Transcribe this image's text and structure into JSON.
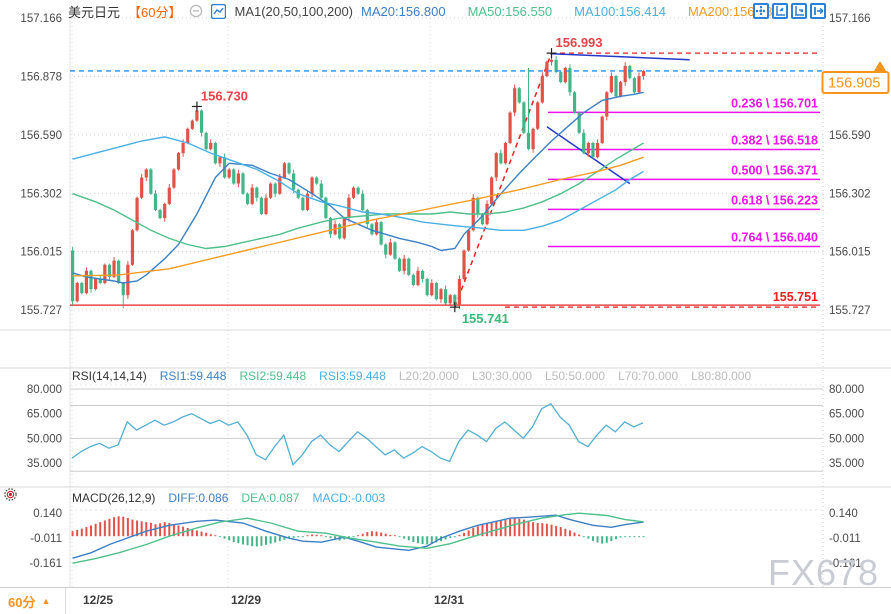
{
  "header": {
    "symbol": "美元日元",
    "timeframe": "【60分】",
    "indicator_set_label": "MA1(20,50,100,200)",
    "ma_values": [
      {
        "label": "MA20:156.800",
        "color": "#3d7fc4"
      },
      {
        "label": "MA50:156.550",
        "color": "#4fbf8b"
      },
      {
        "label": "MA100:156.414",
        "color": "#49b0e3"
      },
      {
        "label": "MA200:156.48",
        "color": "#f59a23"
      }
    ]
  },
  "toolbar_icons": [
    "crosshair-tool",
    "fit-vertical-scale",
    "fit-horizontal-scale",
    "pan-right"
  ],
  "chart_data": {
    "type": "candlestick",
    "symbol": "USD/JPY",
    "interval": "60min",
    "price_axis_ticks": [
      "157.166",
      "156.878",
      "156.590",
      "156.302",
      "156.015",
      "155.727"
    ],
    "time_axis_ticks": [
      "12/25",
      "12/29",
      "12/31"
    ],
    "current_price": "156.905",
    "up_color": "#e25249",
    "down_color": "#44b588",
    "candles": {
      "first_open": 156.02,
      "closes": [
        155.77,
        155.86,
        155.81,
        155.92,
        155.83,
        155.88,
        155.86,
        155.95,
        155.89,
        155.97,
        155.86,
        155.8,
        155.95,
        156.12,
        156.28,
        156.38,
        156.42,
        156.3,
        156.22,
        156.18,
        156.25,
        156.33,
        156.42,
        156.5,
        156.55,
        156.62,
        156.66,
        156.71,
        156.6,
        156.52,
        156.55,
        156.45,
        156.48,
        156.38,
        156.42,
        156.35,
        156.4,
        156.3,
        156.25,
        156.33,
        156.28,
        156.2,
        156.28,
        156.35,
        156.3,
        156.38,
        156.45,
        156.4,
        156.32,
        156.28,
        156.22,
        156.3,
        156.38,
        156.35,
        156.28,
        156.18,
        156.1,
        156.15,
        156.08,
        156.18,
        156.28,
        156.33,
        156.3,
        156.22,
        156.15,
        156.1,
        156.16,
        156.05,
        156.0,
        156.06,
        155.98,
        155.92,
        155.98,
        155.9,
        155.85,
        155.92,
        155.88,
        155.8,
        155.86,
        155.78,
        155.83,
        155.76,
        155.8,
        155.75,
        155.88,
        156.02,
        156.12,
        156.28,
        156.2,
        156.15,
        156.25,
        156.38,
        156.5,
        156.45,
        156.55,
        156.7,
        156.82,
        156.75,
        156.6,
        156.52,
        156.62,
        156.75,
        156.88,
        156.95,
        156.96,
        156.9,
        156.85,
        156.92,
        156.8,
        156.7,
        156.6,
        156.5,
        156.55,
        156.48,
        156.55,
        156.68,
        156.8,
        156.88,
        156.78,
        156.85,
        156.93,
        156.87,
        156.8,
        156.88,
        156.905
      ],
      "wick_overrides": {
        "11": {
          "low": 155.735
        },
        "27": {
          "high": 156.73
        },
        "83": {
          "low": 155.741
        },
        "99": {
          "high": 156.92
        },
        "104": {
          "high": 156.993
        }
      }
    },
    "ma_lines": {
      "ma20": {
        "color": "#3d7fc4",
        "points": [
          [
            0,
            155.91
          ],
          [
            3,
            155.89
          ],
          [
            6,
            155.88
          ],
          [
            9,
            155.87
          ],
          [
            11,
            155.86
          ],
          [
            14,
            155.87
          ],
          [
            16,
            155.9
          ],
          [
            20,
            155.98
          ],
          [
            23,
            156.05
          ],
          [
            27,
            156.2
          ],
          [
            31,
            156.38
          ],
          [
            34,
            156.45
          ],
          [
            39,
            156.44
          ],
          [
            43,
            156.4
          ],
          [
            47,
            156.37
          ],
          [
            52,
            156.3
          ],
          [
            56,
            156.24
          ],
          [
            59,
            156.18
          ],
          [
            63,
            156.14
          ],
          [
            65,
            156.12
          ],
          [
            68,
            156.1
          ],
          [
            71,
            156.08
          ],
          [
            75,
            156.06
          ],
          [
            78,
            156.04
          ],
          [
            80,
            156.02
          ],
          [
            83,
            156.03
          ],
          [
            85,
            156.1
          ],
          [
            89,
            156.19
          ],
          [
            93,
            156.3
          ],
          [
            97,
            156.4
          ],
          [
            100,
            156.47
          ],
          [
            104,
            156.56
          ],
          [
            108,
            156.64
          ],
          [
            111,
            156.7
          ],
          [
            115,
            156.76
          ],
          [
            119,
            156.78
          ],
          [
            122,
            156.79
          ],
          [
            124,
            156.8
          ]
        ]
      },
      "ma50": {
        "color": "#4fbf8b",
        "points": [
          [
            0,
            156.3
          ],
          [
            5,
            156.26
          ],
          [
            9,
            156.22
          ],
          [
            13,
            156.17
          ],
          [
            17,
            156.12
          ],
          [
            21,
            156.08
          ],
          [
            25,
            156.05
          ],
          [
            29,
            156.03
          ],
          [
            33,
            156.04
          ],
          [
            37,
            156.06
          ],
          [
            41,
            156.08
          ],
          [
            45,
            156.1
          ],
          [
            49,
            156.13
          ],
          [
            54,
            156.16
          ],
          [
            58,
            156.18
          ],
          [
            63,
            156.19
          ],
          [
            68,
            156.2
          ],
          [
            73,
            156.2
          ],
          [
            78,
            156.2
          ],
          [
            82,
            156.21
          ],
          [
            86,
            156.2
          ],
          [
            90,
            156.2
          ],
          [
            94,
            156.21
          ],
          [
            98,
            156.23
          ],
          [
            102,
            156.26
          ],
          [
            106,
            156.3
          ],
          [
            110,
            156.35
          ],
          [
            114,
            156.41
          ],
          [
            118,
            156.47
          ],
          [
            121,
            156.51
          ],
          [
            124,
            156.55
          ]
        ]
      },
      "ma100": {
        "color": "#49b0e3",
        "points": [
          [
            0,
            156.47
          ],
          [
            5,
            156.5
          ],
          [
            10,
            156.53
          ],
          [
            15,
            156.56
          ],
          [
            20,
            156.58
          ],
          [
            25,
            156.55
          ],
          [
            30,
            156.5
          ],
          [
            35,
            156.46
          ],
          [
            40,
            156.42
          ],
          [
            45,
            156.36
          ],
          [
            49,
            156.3
          ],
          [
            54,
            156.26
          ],
          [
            58,
            156.24
          ],
          [
            63,
            156.21
          ],
          [
            67,
            156.2
          ],
          [
            72,
            156.18
          ],
          [
            76,
            156.16
          ],
          [
            80,
            156.15
          ],
          [
            84,
            156.14
          ],
          [
            89,
            156.13
          ],
          [
            93,
            156.12
          ],
          [
            98,
            156.12
          ],
          [
            102,
            156.14
          ],
          [
            106,
            156.17
          ],
          [
            110,
            156.22
          ],
          [
            114,
            156.27
          ],
          [
            118,
            156.32
          ],
          [
            121,
            156.37
          ],
          [
            124,
            156.41
          ]
        ]
      },
      "ma200": {
        "color": "#f59a23",
        "points": [
          [
            0,
            155.895
          ],
          [
            10,
            155.9
          ],
          [
            21,
            155.93
          ],
          [
            32,
            155.99
          ],
          [
            43,
            156.05
          ],
          [
            54,
            156.11
          ],
          [
            65,
            156.17
          ],
          [
            76,
            156.22
          ],
          [
            87,
            156.27
          ],
          [
            97,
            156.32
          ],
          [
            106,
            156.37
          ],
          [
            114,
            156.41
          ],
          [
            119,
            156.44
          ],
          [
            124,
            156.48
          ]
        ]
      }
    },
    "fib_levels": [
      {
        "ratio": "0.236",
        "price": "156.701",
        "label": "0.236 \\ 156.701"
      },
      {
        "ratio": "0.382",
        "price": "156.518",
        "label": "0.382 \\ 156.518"
      },
      {
        "ratio": "0.500",
        "price": "156.371",
        "label": "0.500 \\ 156.371"
      },
      {
        "ratio": "0.618",
        "price": "156.223",
        "label": "0.618 \\ 156.223"
      },
      {
        "ratio": "0.764",
        "price": "156.040",
        "label": "0.764 \\ 156.040"
      }
    ],
    "fib_color": "#ed13ed",
    "annotations": [
      {
        "text": "156.993",
        "color": "#e8434a",
        "price": 156.993,
        "candle": 104,
        "pos": "above"
      },
      {
        "text": "156.730",
        "color": "#e8434a",
        "price": 156.73,
        "candle": 27,
        "pos": "above"
      },
      {
        "text": "155.741",
        "color": "#3cb878",
        "price": 155.741,
        "candle": 83,
        "pos": "below"
      },
      {
        "text": "155.751",
        "color": "#e82020",
        "price": 155.751,
        "pos": "line-label"
      }
    ],
    "horizontal_lines": [
      {
        "price": 155.751,
        "style": "solid",
        "color": "#e82020",
        "x_from": 70,
        "x_to": 820
      },
      {
        "price": 155.741,
        "style": "dashed",
        "color": "#e82020",
        "x_from": 505,
        "x_to": 820
      },
      {
        "price": 156.993,
        "style": "dashed",
        "color": "#e82020",
        "x_from": 551,
        "x_to": 820
      }
    ],
    "trend_lines": [
      {
        "from": [
          83,
          155.741
        ],
        "to": [
          104,
          156.993
        ],
        "color": "#e82020",
        "style": "dashed"
      },
      {
        "from": [
          104,
          156.99
        ],
        "to": [
          134,
          156.96
        ],
        "color": "#2438c8",
        "style": "solid"
      },
      {
        "from": [
          103,
          156.63
        ],
        "to": [
          121,
          156.35
        ],
        "color": "#2438c8",
        "style": "solid"
      }
    ],
    "current_price_line_color": "#1e90ff",
    "badge_color": "#f7941e"
  },
  "rsi": {
    "params_label": "RSI(14,14,14)",
    "values": [
      {
        "label": "RSI1:59.448",
        "color": "#3d7fc4"
      },
      {
        "label": "RSI2:59.448",
        "color": "#4fbf8b"
      },
      {
        "label": "RSI3:59.448",
        "color": "#49b0e3"
      }
    ],
    "levels": [
      {
        "label": "L20:20.000",
        "value": 20
      },
      {
        "label": "L30:30.000",
        "value": 30
      },
      {
        "label": "L50:50.000",
        "value": 50
      },
      {
        "label": "L70:70.000",
        "value": 70
      },
      {
        "label": "L80:80.000",
        "value": 80
      }
    ],
    "axis_ticks": [
      "80.000",
      "65.000",
      "50.000",
      "35.000"
    ],
    "line_color": "#52aed3",
    "series_step": 2,
    "series": [
      38,
      42,
      45,
      47,
      44,
      46,
      60,
      55,
      58,
      61,
      58,
      60,
      63,
      65,
      62,
      59,
      61,
      58,
      60,
      52,
      40,
      37,
      45,
      52,
      34,
      40,
      48,
      52,
      46,
      42,
      48,
      54,
      50,
      45,
      40,
      43,
      38,
      41,
      45,
      42,
      38,
      36,
      48,
      55,
      52,
      48,
      56,
      60,
      55,
      50,
      57,
      68,
      71,
      63,
      58,
      48,
      45,
      52,
      58,
      54,
      60,
      57,
      59.4
    ]
  },
  "macd": {
    "params_label": "MACD(26,12,9)",
    "diff": {
      "label": "DIFF:0.086",
      "color": "#3d7fc4"
    },
    "dea": {
      "label": "DEA:0.087",
      "color": "#4fbf8b"
    },
    "macd": {
      "label": "MACD:-0.003",
      "color": "#49b0e3"
    },
    "axis_ticks": [
      "0.140",
      "-0.011",
      "-0.161"
    ],
    "hist": [
      0.03,
      0.038,
      0.046,
      0.055,
      0.065,
      0.075,
      0.085,
      0.095,
      0.105,
      0.115,
      0.12,
      0.118,
      0.11,
      0.1,
      0.095,
      0.09,
      0.085,
      0.08,
      0.072,
      0.078,
      0.085,
      0.08,
      0.072,
      0.065,
      0.058,
      0.05,
      0.042,
      0.035,
      0.028,
      0.02,
      0.012,
      0.005,
      -0.005,
      -0.015,
      -0.025,
      -0.035,
      -0.042,
      -0.05,
      -0.055,
      -0.06,
      -0.062,
      -0.058,
      -0.052,
      -0.045,
      -0.038,
      -0.03,
      -0.022,
      -0.015,
      -0.01,
      -0.006,
      -0.003,
      0.004,
      0.01,
      0.008,
      0.004,
      -0.004,
      -0.012,
      -0.02,
      -0.026,
      -0.02,
      -0.012,
      -0.005,
      0.005,
      0.015,
      0.025,
      0.03,
      0.028,
      0.022,
      0.015,
      0.008,
      0.002,
      -0.006,
      -0.015,
      -0.025,
      -0.035,
      -0.042,
      -0.048,
      -0.05,
      -0.045,
      -0.038,
      -0.03,
      -0.02,
      -0.01,
      -0.002,
      0.008,
      0.02,
      0.035,
      0.05,
      0.06,
      0.068,
      0.075,
      0.082,
      0.09,
      0.095,
      0.1,
      0.105,
      0.108,
      0.105,
      0.1,
      0.092,
      0.085,
      0.08,
      0.078,
      0.075,
      0.07,
      0.062,
      0.055,
      0.045,
      0.035,
      0.022,
      0.01,
      -0.002,
      -0.015,
      -0.028,
      -0.038,
      -0.045,
      -0.04,
      -0.03,
      -0.018,
      -0.008,
      -0.003,
      -0.004,
      -0.005,
      -0.004,
      -0.003
    ],
    "diff_points": [
      [
        0,
        -0.133
      ],
      [
        4,
        -0.1
      ],
      [
        8,
        -0.05
      ],
      [
        11,
        -0.02
      ],
      [
        16,
        0.03
      ],
      [
        21,
        0.066
      ],
      [
        27,
        0.09
      ],
      [
        31,
        0.097
      ],
      [
        37,
        0.08
      ],
      [
        42,
        0.03
      ],
      [
        47,
        -0.012
      ],
      [
        50,
        -0.03
      ],
      [
        54,
        -0.036
      ],
      [
        59,
        -0.006
      ],
      [
        62,
        -0.03
      ],
      [
        66,
        -0.066
      ],
      [
        71,
        -0.08
      ],
      [
        73,
        -0.085
      ],
      [
        77,
        -0.06
      ],
      [
        80,
        -0.012
      ],
      [
        84,
        0.03
      ],
      [
        88,
        0.066
      ],
      [
        92,
        0.09
      ],
      [
        95,
        0.109
      ],
      [
        99,
        0.115
      ],
      [
        105,
        0.127
      ],
      [
        108,
        0.1
      ],
      [
        113,
        0.066
      ],
      [
        117,
        0.054
      ],
      [
        120,
        0.07
      ],
      [
        124,
        0.086
      ]
    ],
    "dea_points": [
      [
        0,
        -0.163
      ],
      [
        5,
        -0.135
      ],
      [
        10,
        -0.1
      ],
      [
        16,
        -0.05
      ],
      [
        21,
        0.0
      ],
      [
        27,
        0.05
      ],
      [
        32,
        0.085
      ],
      [
        38,
        0.109
      ],
      [
        43,
        0.08
      ],
      [
        49,
        0.03
      ],
      [
        55,
        0.018
      ],
      [
        60,
        -0.01
      ],
      [
        66,
        -0.036
      ],
      [
        71,
        -0.06
      ],
      [
        77,
        -0.073
      ],
      [
        82,
        -0.045
      ],
      [
        86,
        -0.01
      ],
      [
        91,
        0.03
      ],
      [
        96,
        0.07
      ],
      [
        102,
        0.11
      ],
      [
        107,
        0.13
      ],
      [
        110,
        0.139
      ],
      [
        116,
        0.125
      ],
      [
        120,
        0.1
      ],
      [
        124,
        0.087
      ]
    ]
  },
  "footer": {
    "timeframe": "60分"
  },
  "watermark": "FX678"
}
